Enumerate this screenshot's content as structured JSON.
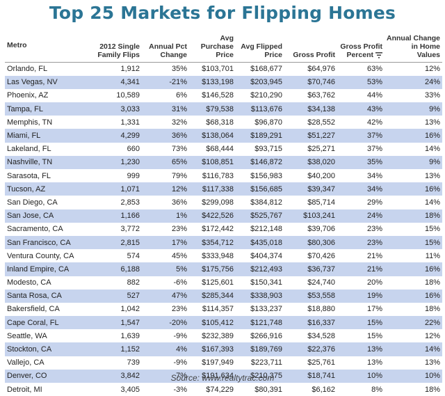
{
  "title": "Top 25 Markets for Flipping Homes",
  "source": "Source: www.realtytrac.com",
  "chart_data": {
    "type": "table",
    "title": "Top 25 Markets for Flipping Homes",
    "sorted_by": "Gross Profit Percent",
    "columns": [
      "Metro",
      "2012 Single Family Flips",
      "Annual Pct Change",
      "Avg Purchase Price",
      "Avg Flipped Price",
      "Gross Profit",
      "Gross Profit Percent",
      "Annual Change in Home Values"
    ],
    "rows": [
      [
        "Orlando, FL",
        "1,912",
        "35%",
        "$103,701",
        "$168,677",
        "$64,976",
        "63%",
        "12%"
      ],
      [
        "Las Vegas, NV",
        "4,341",
        "-21%",
        "$133,198",
        "$203,945",
        "$70,746",
        "53%",
        "24%"
      ],
      [
        "Phoenix, AZ",
        "10,589",
        "6%",
        "$146,528",
        "$210,290",
        "$63,762",
        "44%",
        "33%"
      ],
      [
        "Tampa, FL",
        "3,033",
        "31%",
        "$79,538",
        "$113,676",
        "$34,138",
        "43%",
        "9%"
      ],
      [
        "Memphis, TN",
        "1,331",
        "32%",
        "$68,318",
        "$96,870",
        "$28,552",
        "42%",
        "13%"
      ],
      [
        "Miami, FL",
        "4,299",
        "36%",
        "$138,064",
        "$189,291",
        "$51,227",
        "37%",
        "16%"
      ],
      [
        "Lakeland, FL",
        "660",
        "73%",
        "$68,444",
        "$93,715",
        "$25,271",
        "37%",
        "14%"
      ],
      [
        "Nashville, TN",
        "1,230",
        "65%",
        "$108,851",
        "$146,872",
        "$38,020",
        "35%",
        "9%"
      ],
      [
        "Sarasota, FL",
        "999",
        "79%",
        "$116,783",
        "$156,983",
        "$40,200",
        "34%",
        "13%"
      ],
      [
        "Tucson, AZ",
        "1,071",
        "12%",
        "$117,338",
        "$156,685",
        "$39,347",
        "34%",
        "16%"
      ],
      [
        "San Diego, CA",
        "2,853",
        "36%",
        "$299,098",
        "$384,812",
        "$85,714",
        "29%",
        "14%"
      ],
      [
        "San Jose, CA",
        "1,166",
        "1%",
        "$422,526",
        "$525,767",
        "$103,241",
        "24%",
        "18%"
      ],
      [
        "Sacramento, CA",
        "3,772",
        "23%",
        "$172,442",
        "$212,148",
        "$39,706",
        "23%",
        "15%"
      ],
      [
        "San Francisco, CA",
        "2,815",
        "17%",
        "$354,712",
        "$435,018",
        "$80,306",
        "23%",
        "15%"
      ],
      [
        "Ventura County, CA",
        "574",
        "45%",
        "$333,948",
        "$404,374",
        "$70,426",
        "21%",
        "11%"
      ],
      [
        "Inland Empire, CA",
        "6,188",
        "5%",
        "$175,756",
        "$212,493",
        "$36,737",
        "21%",
        "16%"
      ],
      [
        "Modesto, CA",
        "882",
        "-6%",
        "$125,601",
        "$150,341",
        "$24,740",
        "20%",
        "18%"
      ],
      [
        "Santa Rosa, CA",
        "527",
        "47%",
        "$285,344",
        "$338,903",
        "$53,558",
        "19%",
        "16%"
      ],
      [
        "Bakersfield, CA",
        "1,042",
        "23%",
        "$114,357",
        "$133,237",
        "$18,880",
        "17%",
        "18%"
      ],
      [
        "Cape Coral, FL",
        "1,547",
        "-20%",
        "$105,412",
        "$121,748",
        "$16,337",
        "15%",
        "22%"
      ],
      [
        "Seattle, WA",
        "1,639",
        "-9%",
        "$232,389",
        "$266,916",
        "$34,528",
        "15%",
        "12%"
      ],
      [
        "Stockton, CA",
        "1,152",
        "4%",
        "$167,393",
        "$189,769",
        "$22,376",
        "13%",
        "14%"
      ],
      [
        "Vallejo, CA",
        "739",
        "-9%",
        "$197,949",
        "$223,711",
        "$25,761",
        "13%",
        "13%"
      ],
      [
        "Denver, CO",
        "3,842",
        "7%",
        "$191,634",
        "$210,375",
        "$18,741",
        "10%",
        "10%"
      ],
      [
        "Detroit, MI",
        "3,405",
        "-3%",
        "$74,229",
        "$80,391",
        "$6,162",
        "8%",
        "18%"
      ]
    ],
    "row_stripe_color": "#c7d4ee",
    "title_color": "#2b7595",
    "sort_icon": "sort-descending-icon"
  }
}
